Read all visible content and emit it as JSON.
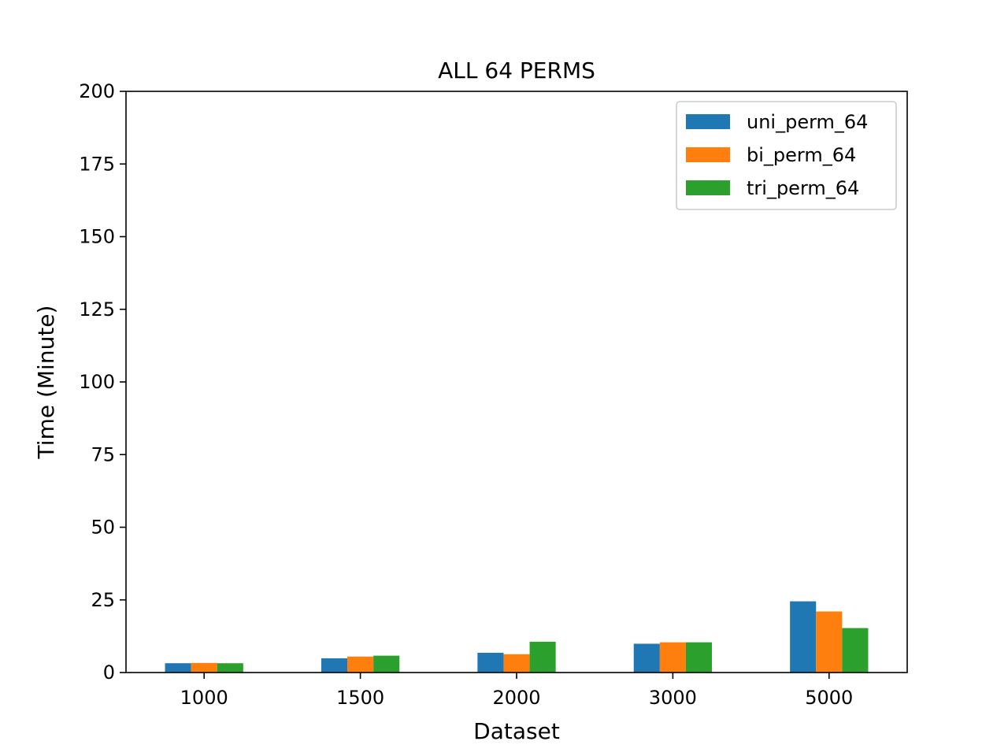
{
  "chart_data": {
    "type": "bar",
    "title": "ALL 64 PERMS",
    "xlabel": "Dataset",
    "ylabel": "Time (Minute)",
    "categories": [
      "1000",
      "1500",
      "2000",
      "3000",
      "5000"
    ],
    "ylim": [
      0,
      200
    ],
    "yticks": [
      0,
      25,
      50,
      75,
      100,
      125,
      150,
      175,
      200
    ],
    "legend_position": "top-right",
    "grid": false,
    "series": [
      {
        "name": "uni_perm_64",
        "color": "#1f77b4",
        "values": [
          3.2,
          4.9,
          6.8,
          9.9,
          24.5
        ]
      },
      {
        "name": "bi_perm_64",
        "color": "#ff7f0e",
        "values": [
          3.3,
          5.5,
          6.3,
          10.4,
          21.0
        ]
      },
      {
        "name": "tri_perm_64",
        "color": "#2ca02c",
        "values": [
          3.2,
          5.8,
          10.6,
          10.4,
          15.3
        ]
      }
    ]
  }
}
